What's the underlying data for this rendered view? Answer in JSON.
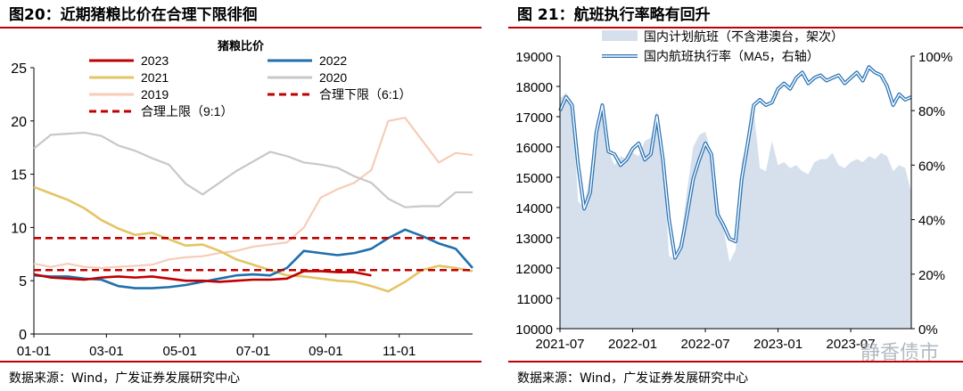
{
  "left_panel": {
    "title": "图20：近期猪粮比价在合理下限徘徊",
    "source": "数据来源：Wind，广发证券发展研究中心"
  },
  "right_panel": {
    "title": "图 21：航班执行率略有回升",
    "source": "数据来源：Wind，广发证券发展研究中心"
  },
  "watermark": "静香债市",
  "colors": {
    "s2023": "#c00000",
    "s2022": "#1f6fae",
    "s2021": "#e3c565",
    "s2020": "#c8c8c8",
    "s2019": "#f6cdb8",
    "limit": "#c00000",
    "area": "#d5e0ec",
    "exec_line": "#2e75b6"
  },
  "chart_data": [
    {
      "type": "line",
      "title": "猪粮比价",
      "x_ticks": [
        "01-01",
        "03-01",
        "05-01",
        "07-01",
        "09-01",
        "11-01"
      ],
      "ylim": [
        0,
        25
      ],
      "y_ticks": [
        0,
        5,
        10,
        15,
        20,
        25
      ],
      "legend_placement": "top",
      "series": [
        {
          "name": "2019",
          "key": "s2019",
          "x": [
            0,
            2,
            4,
            6,
            8,
            10,
            12,
            14,
            16,
            18,
            20,
            22,
            24,
            26,
            28,
            30,
            32,
            34,
            36,
            38,
            40,
            42,
            44,
            46,
            48,
            50,
            52
          ],
          "values": [
            6.6,
            6.3,
            6.6,
            6.3,
            6.2,
            6.3,
            6.4,
            6.5,
            7.0,
            7.2,
            7.3,
            7.6,
            7.8,
            8.2,
            8.4,
            8.6,
            10.0,
            12.8,
            13.6,
            14.2,
            15.4,
            20.0,
            20.3,
            18.2,
            16.1,
            17.0,
            16.8
          ]
        },
        {
          "name": "2020",
          "key": "s2020",
          "x": [
            0,
            2,
            4,
            6,
            8,
            10,
            12,
            14,
            16,
            18,
            20,
            22,
            24,
            26,
            28,
            30,
            32,
            34,
            36,
            38,
            40,
            42,
            44,
            46,
            48,
            50,
            52
          ],
          "values": [
            17.4,
            18.7,
            18.8,
            18.9,
            18.6,
            17.7,
            17.2,
            16.5,
            15.9,
            14.1,
            13.1,
            14.2,
            15.3,
            16.2,
            17.1,
            16.7,
            16.1,
            15.9,
            15.6,
            14.8,
            14.2,
            12.7,
            11.9,
            12.0,
            12.0,
            13.3,
            13.3
          ]
        },
        {
          "name": "2021",
          "key": "s2021",
          "x": [
            0,
            2,
            4,
            6,
            8,
            10,
            12,
            14,
            16,
            18,
            20,
            22,
            24,
            26,
            28,
            30,
            32,
            34,
            36,
            38,
            40,
            42,
            44,
            46,
            48,
            50,
            52
          ],
          "values": [
            13.8,
            13.2,
            12.6,
            11.8,
            10.7,
            9.9,
            9.3,
            9.5,
            8.9,
            8.3,
            8.4,
            7.8,
            7.0,
            6.5,
            6.0,
            5.5,
            5.4,
            5.2,
            5.0,
            4.9,
            4.5,
            4.0,
            4.9,
            6.0,
            6.4,
            6.2,
            5.9
          ]
        },
        {
          "name": "2022",
          "key": "s2022",
          "x": [
            0,
            2,
            4,
            6,
            8,
            10,
            12,
            14,
            16,
            18,
            20,
            22,
            24,
            26,
            28,
            30,
            32,
            34,
            36,
            38,
            40,
            42,
            44,
            46,
            48,
            50,
            52
          ],
          "values": [
            5.5,
            5.4,
            5.4,
            5.2,
            5.1,
            4.5,
            4.3,
            4.3,
            4.4,
            4.6,
            4.9,
            5.2,
            5.5,
            5.6,
            5.5,
            6.2,
            7.8,
            7.6,
            7.4,
            7.6,
            8.0,
            9.0,
            9.8,
            9.2,
            8.5,
            8.0,
            6.2
          ]
        },
        {
          "name": "2023",
          "key": "s2023",
          "x": [
            0,
            2,
            4,
            6,
            8,
            10,
            12,
            14,
            16,
            18,
            20,
            22,
            24,
            26,
            28,
            30,
            32,
            34,
            36,
            38,
            40
          ],
          "values": [
            5.6,
            5.3,
            5.2,
            5.1,
            5.3,
            5.4,
            5.3,
            5.4,
            5.2,
            5.0,
            5.0,
            4.9,
            5.0,
            5.1,
            5.1,
            5.2,
            5.9,
            5.9,
            5.8,
            5.8,
            5.5
          ]
        },
        {
          "name": "合理上限（9:1）",
          "key": "limit",
          "x": [
            0,
            52
          ],
          "values": [
            9,
            9
          ],
          "dashed": true
        },
        {
          "name": "合理下限（6:1）",
          "key": "limit",
          "x": [
            0,
            52
          ],
          "values": [
            6,
            6
          ],
          "dashed": true
        }
      ]
    },
    {
      "type": "area",
      "x_ticks": [
        "2021-07",
        "2022-01",
        "2022-07",
        "2023-01",
        "2023-07"
      ],
      "ylim_left": [
        10000,
        19000
      ],
      "y_ticks_left": [
        10000,
        11000,
        12000,
        13000,
        14000,
        15000,
        16000,
        17000,
        18000,
        19000
      ],
      "ylim_right": [
        0,
        100
      ],
      "y_ticks_right": [
        "0%",
        "20%",
        "40%",
        "60%",
        "80%",
        "100%"
      ],
      "legend_placement": "top",
      "series": [
        {
          "name": "国内计划航班（不含港澳台，架次）",
          "axis": "left",
          "x": [
            0,
            0.5,
            1,
            1.5,
            2,
            2.5,
            3,
            3.5,
            4,
            4.5,
            5,
            5.5,
            6,
            6.5,
            7,
            7.5,
            8,
            8.5,
            9,
            9.5,
            10,
            10.5,
            11,
            11.5,
            12,
            12.5,
            13,
            13.5,
            14,
            14.5,
            15,
            15.5,
            16,
            16.5,
            17,
            17.5,
            18,
            18.5,
            19,
            19.5,
            20,
            20.5,
            21,
            21.5,
            22,
            22.5,
            23,
            23.5,
            24,
            24.5,
            25,
            25.5,
            26,
            26.5,
            27,
            27.5,
            28,
            28.5,
            29
          ],
          "values": [
            17600,
            17800,
            17500,
            14200,
            14000,
            15200,
            16800,
            17200,
            15900,
            15400,
            15700,
            15600,
            15800,
            15700,
            16200,
            16300,
            17200,
            15800,
            12400,
            12300,
            13000,
            14600,
            16000,
            16400,
            16500,
            15800,
            14200,
            13300,
            12200,
            12600,
            15500,
            16200,
            17200,
            15300,
            15200,
            16200,
            15400,
            15500,
            15300,
            15400,
            15200,
            15100,
            15500,
            15600,
            15600,
            15800,
            15400,
            15300,
            15500,
            15600,
            15500,
            15700,
            15600,
            15800,
            15700,
            15200,
            15400,
            15300,
            14500
          ]
        },
        {
          "name": "国内航班执行率（MA5，右轴）",
          "axis": "right",
          "x": [
            0,
            0.5,
            1,
            1.5,
            2,
            2.5,
            3,
            3.5,
            4,
            4.5,
            5,
            5.5,
            6,
            6.5,
            7,
            7.5,
            8,
            8.5,
            9,
            9.5,
            10,
            10.5,
            11,
            11.5,
            12,
            12.5,
            13,
            13.5,
            14,
            14.5,
            15,
            15.5,
            16,
            16.5,
            17,
            17.5,
            18,
            18.5,
            19,
            19.5,
            20,
            20.5,
            21,
            21.5,
            22,
            22.5,
            23,
            23.5,
            24,
            24.5,
            25,
            25.5,
            26,
            26.5,
            27,
            27.5,
            28,
            28.5,
            29
          ],
          "values": [
            80,
            85,
            82,
            60,
            44,
            50,
            72,
            82,
            65,
            64,
            60,
            62,
            66,
            68,
            62,
            64,
            78,
            62,
            40,
            26,
            30,
            42,
            55,
            62,
            68,
            64,
            42,
            38,
            33,
            32,
            55,
            68,
            82,
            84,
            82,
            83,
            88,
            90,
            88,
            92,
            94,
            90,
            92,
            93,
            91,
            92,
            93,
            90,
            92,
            94,
            91,
            96,
            94,
            93,
            89,
            82,
            86,
            84,
            85
          ]
        }
      ]
    }
  ]
}
